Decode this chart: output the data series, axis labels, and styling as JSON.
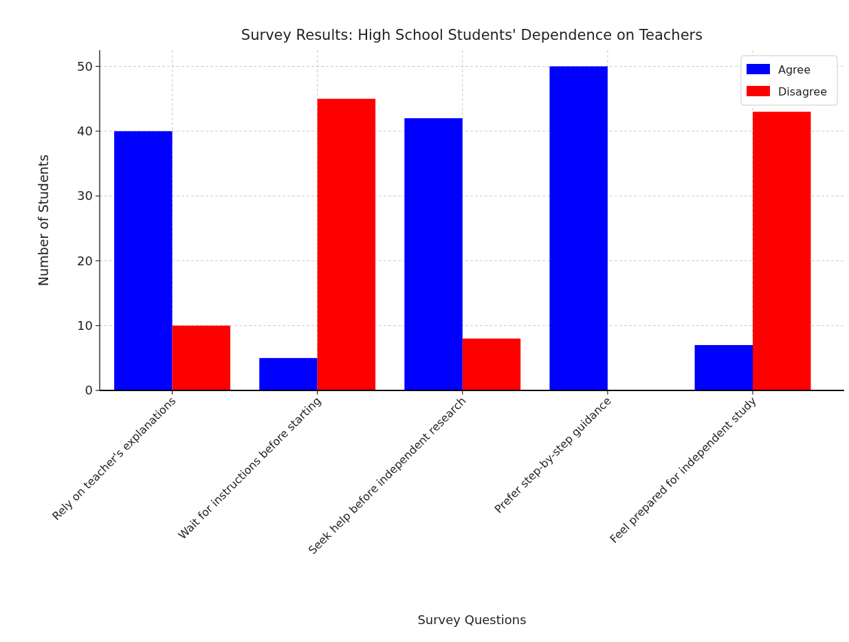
{
  "chart_data": {
    "type": "bar",
    "title": "Survey Results: High School Students' Dependence on Teachers",
    "xlabel": "Survey Questions",
    "ylabel": "Number of Students",
    "categories": [
      "Rely on teacher's explanations",
      "Wait for instructions before starting",
      "Seek help before independent research",
      "Prefer step-by-step guidance",
      "Feel prepared for independent study"
    ],
    "series": [
      {
        "name": "Agree",
        "color": "#0000ff",
        "values": [
          40,
          5,
          42,
          50,
          7
        ]
      },
      {
        "name": "Disagree",
        "color": "#ff0000",
        "values": [
          10,
          45,
          8,
          0,
          43
        ]
      }
    ],
    "ylim": [
      0,
      52.5
    ],
    "yticks": [
      0,
      10,
      20,
      30,
      40,
      50
    ],
    "grid": true,
    "legend": "top right"
  }
}
